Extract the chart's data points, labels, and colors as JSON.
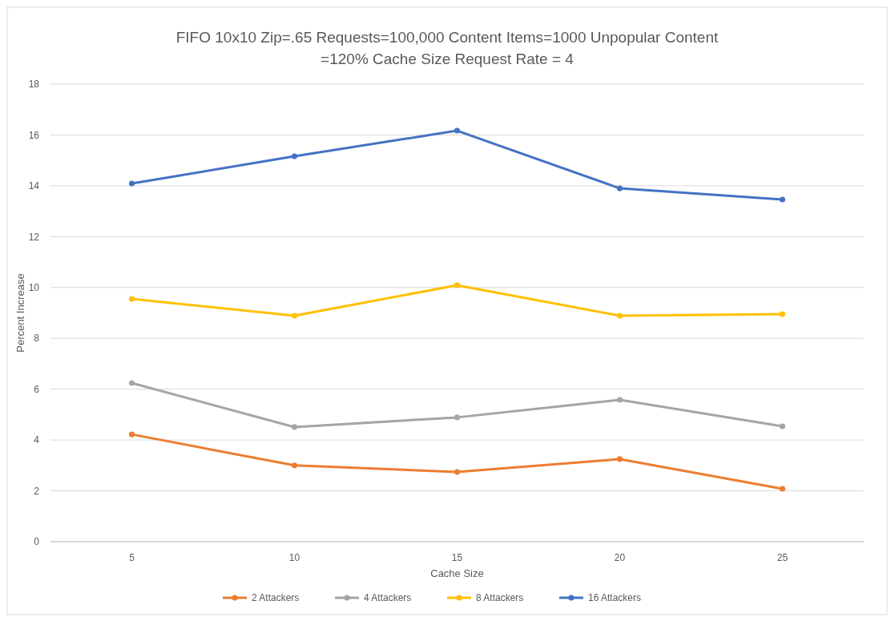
{
  "chart_data": {
    "type": "line",
    "title": "FIFO 10x10 Zip=.65 Requests=100,000 Content Items=1000 Unpopular Content =120% Cache Size Request Rate = 4",
    "xlabel": "Cache Size",
    "ylabel": "Percent Increase",
    "categories": [
      "5",
      "10",
      "15",
      "20",
      "25"
    ],
    "series": [
      {
        "name": "2 Attackers",
        "color": "#ed7d31",
        "values": [
          4.22,
          3.0,
          2.74,
          3.25,
          2.08
        ]
      },
      {
        "name": "4 Attackers",
        "color": "#a5a5a5",
        "values": [
          6.24,
          4.51,
          4.89,
          5.58,
          4.54
        ]
      },
      {
        "name": "8 Attackers",
        "color": "#ffc000",
        "values": [
          9.55,
          8.89,
          10.09,
          8.89,
          8.95
        ]
      },
      {
        "name": "16 Attackers",
        "color": "#4472c4",
        "values": [
          14.09,
          15.16,
          16.17,
          13.9,
          13.46
        ]
      }
    ],
    "ylim": [
      0,
      18
    ],
    "yticks": [
      0,
      2,
      4,
      6,
      8,
      10,
      12,
      14,
      16,
      18
    ],
    "grid": "y",
    "legend": "bottom",
    "marker": "circle",
    "line_style": "solid"
  }
}
